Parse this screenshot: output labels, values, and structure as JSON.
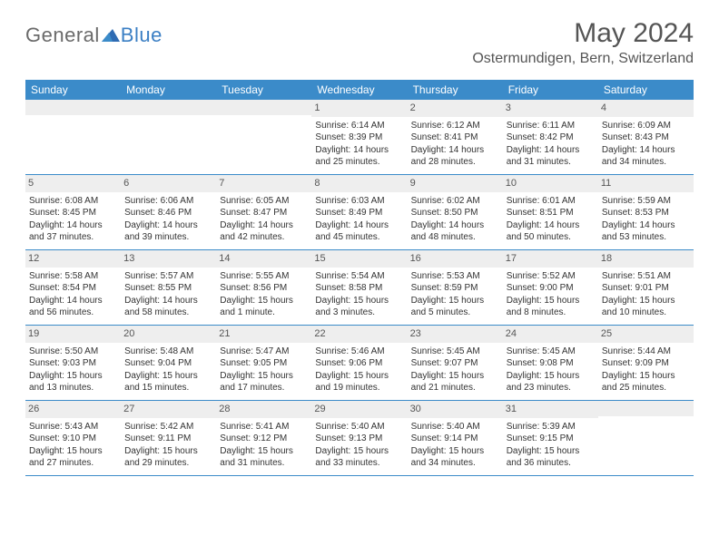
{
  "logo": {
    "text1": "General",
    "text2": "Blue"
  },
  "title": "May 2024",
  "location": "Ostermundigen, Bern, Switzerland",
  "weekdays": [
    "Sunday",
    "Monday",
    "Tuesday",
    "Wednesday",
    "Thursday",
    "Friday",
    "Saturday"
  ],
  "colors": {
    "header_bg": "#3b8bc9",
    "daynum_bg": "#eeeeee",
    "row_border": "#3b8bc9",
    "logo_gray": "#6a6a6a",
    "logo_blue": "#3b7fc4"
  },
  "weeks": [
    [
      {
        "n": "",
        "sunrise": "",
        "sunset": "",
        "daylight": ""
      },
      {
        "n": "",
        "sunrise": "",
        "sunset": "",
        "daylight": ""
      },
      {
        "n": "",
        "sunrise": "",
        "sunset": "",
        "daylight": ""
      },
      {
        "n": "1",
        "sunrise": "Sunrise: 6:14 AM",
        "sunset": "Sunset: 8:39 PM",
        "daylight": "Daylight: 14 hours and 25 minutes."
      },
      {
        "n": "2",
        "sunrise": "Sunrise: 6:12 AM",
        "sunset": "Sunset: 8:41 PM",
        "daylight": "Daylight: 14 hours and 28 minutes."
      },
      {
        "n": "3",
        "sunrise": "Sunrise: 6:11 AM",
        "sunset": "Sunset: 8:42 PM",
        "daylight": "Daylight: 14 hours and 31 minutes."
      },
      {
        "n": "4",
        "sunrise": "Sunrise: 6:09 AM",
        "sunset": "Sunset: 8:43 PM",
        "daylight": "Daylight: 14 hours and 34 minutes."
      }
    ],
    [
      {
        "n": "5",
        "sunrise": "Sunrise: 6:08 AM",
        "sunset": "Sunset: 8:45 PM",
        "daylight": "Daylight: 14 hours and 37 minutes."
      },
      {
        "n": "6",
        "sunrise": "Sunrise: 6:06 AM",
        "sunset": "Sunset: 8:46 PM",
        "daylight": "Daylight: 14 hours and 39 minutes."
      },
      {
        "n": "7",
        "sunrise": "Sunrise: 6:05 AM",
        "sunset": "Sunset: 8:47 PM",
        "daylight": "Daylight: 14 hours and 42 minutes."
      },
      {
        "n": "8",
        "sunrise": "Sunrise: 6:03 AM",
        "sunset": "Sunset: 8:49 PM",
        "daylight": "Daylight: 14 hours and 45 minutes."
      },
      {
        "n": "9",
        "sunrise": "Sunrise: 6:02 AM",
        "sunset": "Sunset: 8:50 PM",
        "daylight": "Daylight: 14 hours and 48 minutes."
      },
      {
        "n": "10",
        "sunrise": "Sunrise: 6:01 AM",
        "sunset": "Sunset: 8:51 PM",
        "daylight": "Daylight: 14 hours and 50 minutes."
      },
      {
        "n": "11",
        "sunrise": "Sunrise: 5:59 AM",
        "sunset": "Sunset: 8:53 PM",
        "daylight": "Daylight: 14 hours and 53 minutes."
      }
    ],
    [
      {
        "n": "12",
        "sunrise": "Sunrise: 5:58 AM",
        "sunset": "Sunset: 8:54 PM",
        "daylight": "Daylight: 14 hours and 56 minutes."
      },
      {
        "n": "13",
        "sunrise": "Sunrise: 5:57 AM",
        "sunset": "Sunset: 8:55 PM",
        "daylight": "Daylight: 14 hours and 58 minutes."
      },
      {
        "n": "14",
        "sunrise": "Sunrise: 5:55 AM",
        "sunset": "Sunset: 8:56 PM",
        "daylight": "Daylight: 15 hours and 1 minute."
      },
      {
        "n": "15",
        "sunrise": "Sunrise: 5:54 AM",
        "sunset": "Sunset: 8:58 PM",
        "daylight": "Daylight: 15 hours and 3 minutes."
      },
      {
        "n": "16",
        "sunrise": "Sunrise: 5:53 AM",
        "sunset": "Sunset: 8:59 PM",
        "daylight": "Daylight: 15 hours and 5 minutes."
      },
      {
        "n": "17",
        "sunrise": "Sunrise: 5:52 AM",
        "sunset": "Sunset: 9:00 PM",
        "daylight": "Daylight: 15 hours and 8 minutes."
      },
      {
        "n": "18",
        "sunrise": "Sunrise: 5:51 AM",
        "sunset": "Sunset: 9:01 PM",
        "daylight": "Daylight: 15 hours and 10 minutes."
      }
    ],
    [
      {
        "n": "19",
        "sunrise": "Sunrise: 5:50 AM",
        "sunset": "Sunset: 9:03 PM",
        "daylight": "Daylight: 15 hours and 13 minutes."
      },
      {
        "n": "20",
        "sunrise": "Sunrise: 5:48 AM",
        "sunset": "Sunset: 9:04 PM",
        "daylight": "Daylight: 15 hours and 15 minutes."
      },
      {
        "n": "21",
        "sunrise": "Sunrise: 5:47 AM",
        "sunset": "Sunset: 9:05 PM",
        "daylight": "Daylight: 15 hours and 17 minutes."
      },
      {
        "n": "22",
        "sunrise": "Sunrise: 5:46 AM",
        "sunset": "Sunset: 9:06 PM",
        "daylight": "Daylight: 15 hours and 19 minutes."
      },
      {
        "n": "23",
        "sunrise": "Sunrise: 5:45 AM",
        "sunset": "Sunset: 9:07 PM",
        "daylight": "Daylight: 15 hours and 21 minutes."
      },
      {
        "n": "24",
        "sunrise": "Sunrise: 5:45 AM",
        "sunset": "Sunset: 9:08 PM",
        "daylight": "Daylight: 15 hours and 23 minutes."
      },
      {
        "n": "25",
        "sunrise": "Sunrise: 5:44 AM",
        "sunset": "Sunset: 9:09 PM",
        "daylight": "Daylight: 15 hours and 25 minutes."
      }
    ],
    [
      {
        "n": "26",
        "sunrise": "Sunrise: 5:43 AM",
        "sunset": "Sunset: 9:10 PM",
        "daylight": "Daylight: 15 hours and 27 minutes."
      },
      {
        "n": "27",
        "sunrise": "Sunrise: 5:42 AM",
        "sunset": "Sunset: 9:11 PM",
        "daylight": "Daylight: 15 hours and 29 minutes."
      },
      {
        "n": "28",
        "sunrise": "Sunrise: 5:41 AM",
        "sunset": "Sunset: 9:12 PM",
        "daylight": "Daylight: 15 hours and 31 minutes."
      },
      {
        "n": "29",
        "sunrise": "Sunrise: 5:40 AM",
        "sunset": "Sunset: 9:13 PM",
        "daylight": "Daylight: 15 hours and 33 minutes."
      },
      {
        "n": "30",
        "sunrise": "Sunrise: 5:40 AM",
        "sunset": "Sunset: 9:14 PM",
        "daylight": "Daylight: 15 hours and 34 minutes."
      },
      {
        "n": "31",
        "sunrise": "Sunrise: 5:39 AM",
        "sunset": "Sunset: 9:15 PM",
        "daylight": "Daylight: 15 hours and 36 minutes."
      },
      {
        "n": "",
        "sunrise": "",
        "sunset": "",
        "daylight": ""
      }
    ]
  ]
}
